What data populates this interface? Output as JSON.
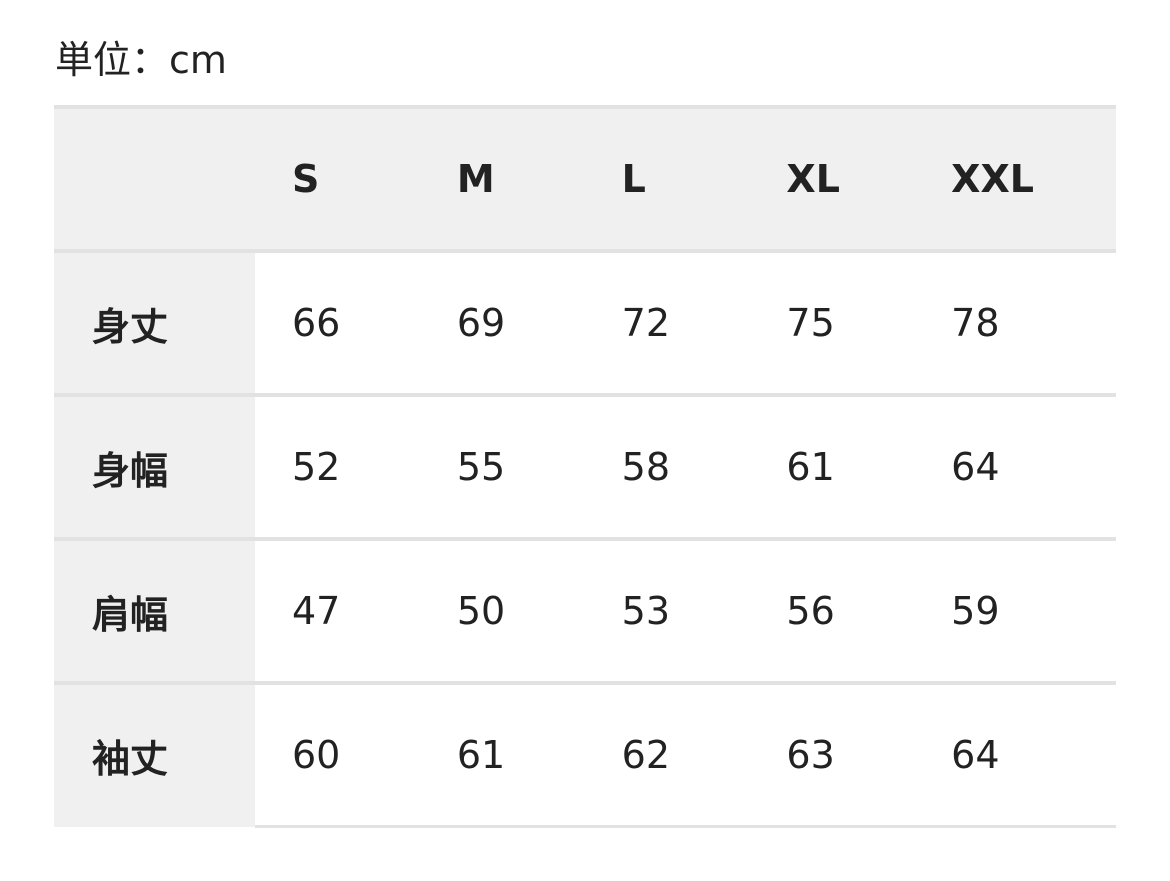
{
  "unit_label": "単位：cm",
  "table": {
    "columns": [
      "S",
      "M",
      "L",
      "XL",
      "XXL"
    ],
    "rows": [
      {
        "label": "身丈",
        "values": [
          "66",
          "69",
          "72",
          "75",
          "78"
        ]
      },
      {
        "label": "身幅",
        "values": [
          "52",
          "55",
          "58",
          "61",
          "64"
        ]
      },
      {
        "label": "肩幅",
        "values": [
          "47",
          "50",
          "53",
          "56",
          "59"
        ]
      },
      {
        "label": "袖丈",
        "values": [
          "60",
          "61",
          "62",
          "63",
          "64"
        ]
      }
    ]
  }
}
